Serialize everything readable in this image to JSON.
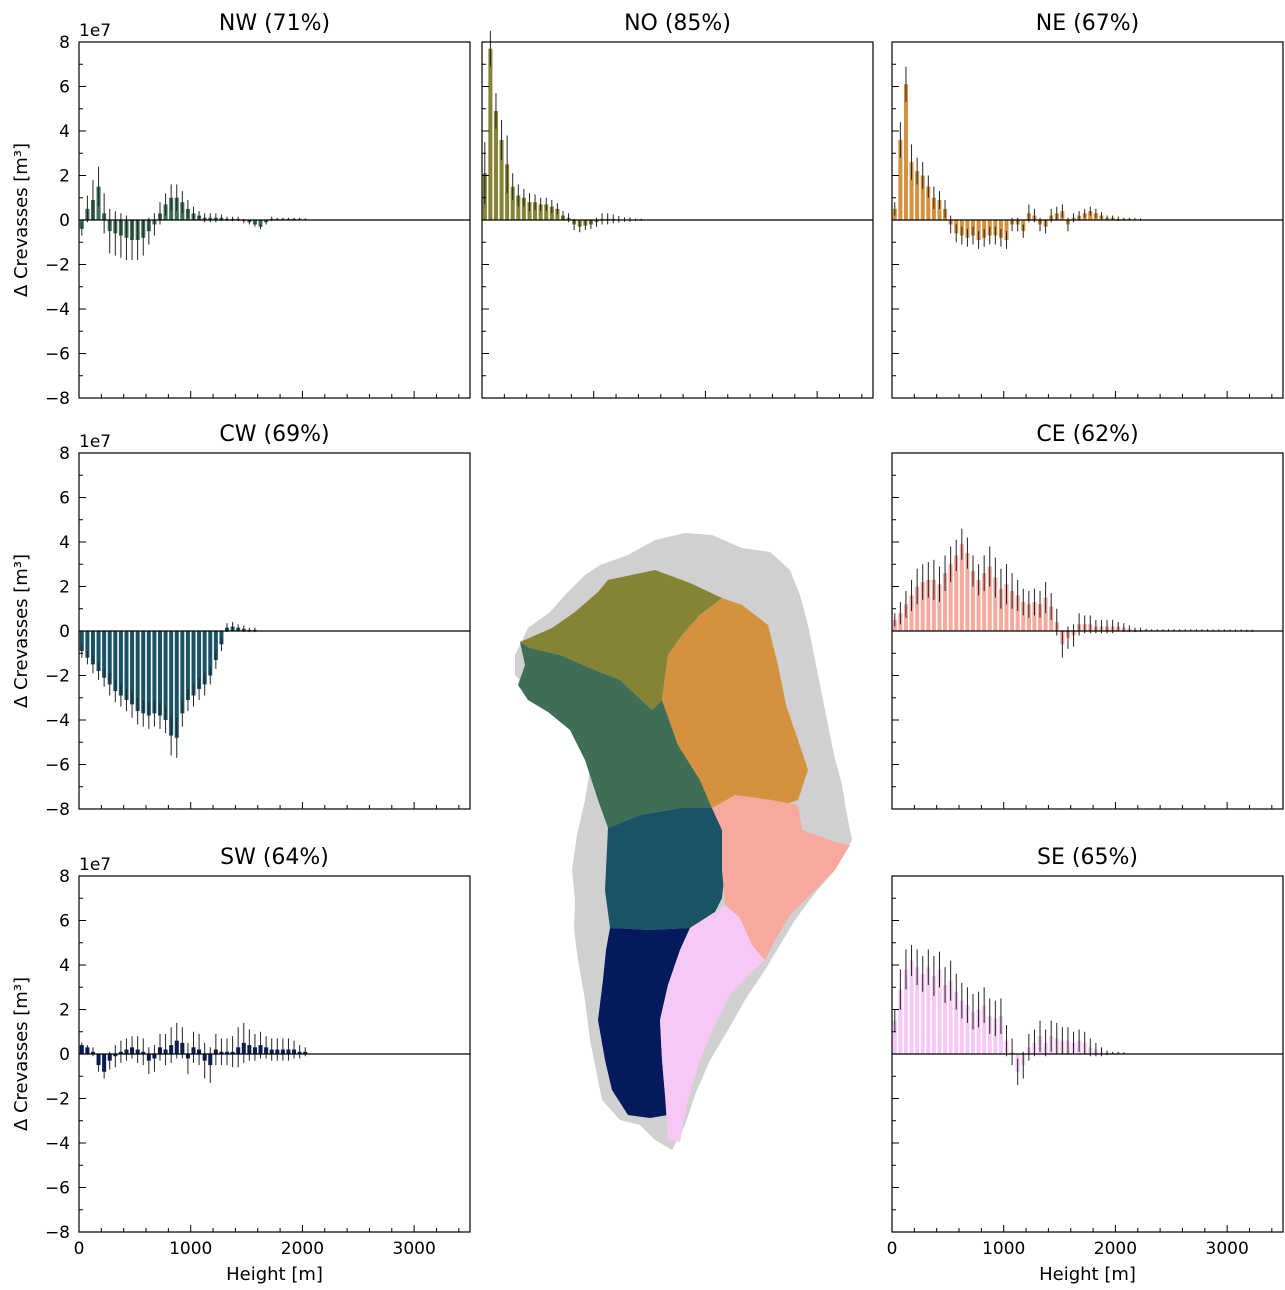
{
  "figure": {
    "shared_xlabel": "Height [m]",
    "shared_ylabel": "Δ Crevasses [m³]",
    "y_offset_text": "1e7",
    "x_tick_labels": [
      "0",
      "1000",
      "2000",
      "3000"
    ],
    "y_tick_labels": [
      "−8",
      "−6",
      "−4",
      "−2",
      "0",
      "2",
      "4",
      "6",
      "8"
    ],
    "map_region_colors": {
      "NW": "#3f6e56",
      "NO": "#858435",
      "NE": "#d4923f",
      "CW": "#1b5366",
      "CE": "#f8a89c",
      "SW": "#051a5c",
      "SE": "#f6c8f3",
      "land": "#d0d0d0"
    }
  },
  "chart_data": [
    {
      "type": "bar",
      "title": "NW (71%)",
      "color": "#3f6e56",
      "xlabel": "",
      "ylabel": "Δ Crevasses [m³]",
      "xlim": [
        0,
        3500
      ],
      "ylim": [
        -8,
        8
      ],
      "y_scale_exponent": 7,
      "x": [
        25,
        75,
        125,
        175,
        225,
        275,
        325,
        375,
        425,
        475,
        525,
        575,
        625,
        675,
        725,
        775,
        825,
        875,
        925,
        975,
        1025,
        1075,
        1125,
        1175,
        1225,
        1275,
        1325,
        1375,
        1425,
        1475,
        1525,
        1575,
        1625,
        1675,
        1725,
        1775,
        1825,
        1875,
        1925,
        1975,
        2025
      ],
      "values": [
        -0.4,
        0.5,
        0.9,
        1.5,
        0.3,
        -0.5,
        -0.6,
        -0.7,
        -0.8,
        -0.9,
        -0.9,
        -0.8,
        -0.5,
        -0.2,
        0.3,
        0.7,
        1.0,
        1.0,
        0.8,
        0.5,
        0.3,
        0.2,
        0.1,
        0.1,
        0.1,
        0.1,
        0.05,
        0.05,
        0.05,
        -0.05,
        -0.1,
        -0.2,
        -0.3,
        -0.1,
        0.05,
        0.05,
        0.05,
        0.05,
        0.05,
        0.05,
        0.03
      ],
      "errors": [
        0.3,
        0.6,
        0.9,
        0.9,
        0.9,
        1.0,
        1.0,
        1.0,
        1.0,
        0.9,
        0.9,
        0.8,
        0.6,
        0.5,
        0.5,
        0.5,
        0.6,
        0.6,
        0.5,
        0.4,
        0.3,
        0.2,
        0.2,
        0.2,
        0.2,
        0.15,
        0.1,
        0.1,
        0.1,
        0.1,
        0.1,
        0.1,
        0.1,
        0.1,
        0.1,
        0.05,
        0.05,
        0.05,
        0.05,
        0.05,
        0.05
      ]
    },
    {
      "type": "bar",
      "title": "NO (85%)",
      "color": "#858435",
      "xlabel": "",
      "ylabel": "",
      "xlim": [
        0,
        3500
      ],
      "ylim": [
        -8,
        8
      ],
      "y_scale_exponent": 7,
      "x": [
        25,
        75,
        125,
        175,
        225,
        275,
        325,
        375,
        425,
        475,
        525,
        575,
        625,
        675,
        725,
        775,
        825,
        875,
        925,
        975,
        1025,
        1075,
        1125,
        1175,
        1225,
        1275,
        1325,
        1375,
        1425
      ],
      "values": [
        2.1,
        7.7,
        4.9,
        3.6,
        2.5,
        1.5,
        1.1,
        1.0,
        0.8,
        0.8,
        0.7,
        0.7,
        0.6,
        0.5,
        0.2,
        0.1,
        -0.2,
        -0.3,
        -0.25,
        -0.2,
        -0.1,
        0.05,
        0.05,
        0.05,
        0.03,
        0.02,
        0.02,
        0.01,
        0.01
      ],
      "errors": [
        1.4,
        0.8,
        0.8,
        0.9,
        1.3,
        0.6,
        0.5,
        0.4,
        0.4,
        0.35,
        0.3,
        0.3,
        0.3,
        0.25,
        0.2,
        0.2,
        0.25,
        0.25,
        0.2,
        0.2,
        0.2,
        0.25,
        0.25,
        0.2,
        0.15,
        0.1,
        0.1,
        0.05,
        0.05
      ]
    },
    {
      "type": "bar",
      "title": "NE (67%)",
      "color": "#d4923f",
      "xlabel": "",
      "ylabel": "",
      "xlim": [
        0,
        3500
      ],
      "ylim": [
        -8,
        8
      ],
      "y_scale_exponent": 7,
      "x": [
        25,
        75,
        125,
        175,
        225,
        275,
        325,
        375,
        425,
        475,
        525,
        575,
        625,
        675,
        725,
        775,
        825,
        875,
        925,
        975,
        1025,
        1075,
        1125,
        1175,
        1225,
        1275,
        1325,
        1375,
        1425,
        1475,
        1525,
        1575,
        1625,
        1675,
        1725,
        1775,
        1825,
        1875,
        1925,
        1975,
        2025,
        2075,
        2125,
        2175,
        2225
      ],
      "values": [
        0.5,
        3.6,
        6.1,
        2.6,
        2.2,
        2.0,
        1.5,
        1.0,
        0.9,
        0.5,
        -0.2,
        -0.6,
        -0.7,
        -0.8,
        -0.7,
        -0.9,
        -0.8,
        -0.7,
        -0.7,
        -0.8,
        -0.9,
        -0.2,
        -0.2,
        -0.5,
        0.3,
        0.2,
        -0.2,
        -0.3,
        0.2,
        0.3,
        0.4,
        -0.2,
        0.1,
        0.2,
        0.3,
        0.4,
        0.3,
        0.2,
        0.1,
        0.1,
        0.05,
        0.05,
        0.05,
        0.03,
        0.02
      ],
      "errors": [
        0.3,
        0.8,
        0.8,
        0.8,
        0.6,
        0.6,
        0.5,
        0.5,
        0.4,
        0.4,
        0.4,
        0.4,
        0.4,
        0.4,
        0.4,
        0.4,
        0.4,
        0.4,
        0.4,
        0.4,
        0.4,
        0.3,
        0.3,
        0.3,
        0.4,
        0.3,
        0.3,
        0.3,
        0.3,
        0.3,
        0.3,
        0.3,
        0.2,
        0.2,
        0.2,
        0.2,
        0.2,
        0.15,
        0.1,
        0.1,
        0.1,
        0.05,
        0.05,
        0.05,
        0.05
      ]
    },
    {
      "type": "bar",
      "title": "CW (69%)",
      "color": "#1b5366",
      "xlabel": "",
      "ylabel": "Δ Crevasses [m³]",
      "xlim": [
        0,
        3500
      ],
      "ylim": [
        -8,
        8
      ],
      "y_scale_exponent": 7,
      "x": [
        25,
        75,
        125,
        175,
        225,
        275,
        325,
        375,
        425,
        475,
        525,
        575,
        625,
        675,
        725,
        775,
        825,
        875,
        925,
        975,
        1025,
        1075,
        1125,
        1175,
        1225,
        1275,
        1325,
        1375,
        1425,
        1475,
        1525,
        1575
      ],
      "values": [
        -0.9,
        -1.2,
        -1.5,
        -1.8,
        -2.1,
        -2.4,
        -2.7,
        -2.9,
        -3.1,
        -3.3,
        -3.6,
        -3.7,
        -3.8,
        -3.7,
        -3.8,
        -4.0,
        -4.7,
        -4.8,
        -3.7,
        -3.1,
        -2.9,
        -2.6,
        -2.4,
        -2.0,
        -1.3,
        -0.6,
        0.15,
        0.2,
        0.15,
        0.1,
        0.05,
        0.05
      ],
      "errors": [
        0.3,
        0.3,
        0.4,
        0.4,
        0.4,
        0.5,
        0.5,
        0.5,
        0.5,
        0.6,
        0.6,
        0.6,
        0.6,
        0.6,
        0.6,
        0.6,
        0.9,
        0.9,
        0.6,
        0.5,
        0.5,
        0.5,
        0.5,
        0.4,
        0.4,
        0.3,
        0.2,
        0.2,
        0.15,
        0.15,
        0.1,
        0.1
      ]
    },
    {
      "type": "bar",
      "title": "CE (62%)",
      "color": "#f8a89c",
      "xlabel": "",
      "ylabel": "",
      "xlim": [
        0,
        3500
      ],
      "ylim": [
        -8,
        8
      ],
      "y_scale_exponent": 7,
      "x": [
        25,
        75,
        125,
        175,
        225,
        275,
        325,
        375,
        425,
        475,
        525,
        575,
        625,
        675,
        725,
        775,
        825,
        875,
        925,
        975,
        1025,
        1075,
        1125,
        1175,
        1225,
        1275,
        1325,
        1375,
        1425,
        1475,
        1525,
        1575,
        1625,
        1675,
        1725,
        1775,
        1825,
        1875,
        1925,
        1975,
        2025,
        2075,
        2125,
        2175,
        2225,
        2275,
        2325,
        2375,
        2425,
        2475,
        2525,
        2575,
        2625,
        2675,
        2725,
        2775,
        2825,
        2875,
        2925,
        2975,
        3025,
        3075,
        3125,
        3175,
        3225
      ],
      "values": [
        0.5,
        0.8,
        1.2,
        1.6,
        2.0,
        2.2,
        2.3,
        2.3,
        2.1,
        2.6,
        3.0,
        3.4,
        3.9,
        3.5,
        2.7,
        2.3,
        2.6,
        2.9,
        2.4,
        1.9,
        2.1,
        1.8,
        1.6,
        1.3,
        1.2,
        1.3,
        1.2,
        1.5,
        1.1,
        0.4,
        -0.6,
        -0.3,
        -0.2,
        0.3,
        0.3,
        0.3,
        0.2,
        0.2,
        0.2,
        0.2,
        0.2,
        0.15,
        0.1,
        0.05,
        0.05,
        0.05,
        0.03,
        0.03,
        0.03,
        0.03,
        0.03,
        0.03,
        0.03,
        0.03,
        0.03,
        0.03,
        0.03,
        0.02,
        0.02,
        0.02,
        0.02,
        0.02,
        0.02,
        0.01,
        0.01
      ],
      "errors": [
        0.3,
        0.5,
        0.6,
        0.7,
        0.8,
        0.8,
        0.8,
        0.9,
        0.8,
        0.8,
        0.8,
        0.7,
        0.7,
        0.7,
        0.7,
        0.7,
        0.8,
        0.9,
        0.9,
        0.9,
        0.9,
        0.8,
        0.7,
        0.6,
        0.6,
        0.6,
        0.6,
        0.7,
        0.6,
        0.6,
        0.6,
        0.5,
        0.5,
        0.5,
        0.4,
        0.4,
        0.3,
        0.3,
        0.3,
        0.3,
        0.2,
        0.2,
        0.15,
        0.1,
        0.1,
        0.05,
        0.05,
        0.05,
        0.05,
        0.05,
        0.05,
        0.05,
        0.05,
        0.05,
        0.05,
        0.05,
        0.05,
        0.05,
        0.05,
        0.05,
        0.05,
        0.05,
        0.05,
        0.05,
        0.05
      ]
    },
    {
      "type": "bar",
      "title": "SW (64%)",
      "color": "#051a5c",
      "xlabel": "Height [m]",
      "ylabel": "Δ Crevasses [m³]",
      "xlim": [
        0,
        3500
      ],
      "ylim": [
        -8,
        8
      ],
      "y_scale_exponent": 7,
      "x": [
        25,
        75,
        125,
        175,
        225,
        275,
        325,
        375,
        425,
        475,
        525,
        575,
        625,
        675,
        725,
        775,
        825,
        875,
        925,
        975,
        1025,
        1075,
        1125,
        1175,
        1225,
        1275,
        1325,
        1375,
        1425,
        1475,
        1525,
        1575,
        1625,
        1675,
        1725,
        1775,
        1825,
        1875,
        1925,
        1975,
        2025
      ],
      "values": [
        0.4,
        0.3,
        0.1,
        -0.5,
        -0.8,
        -0.3,
        -0.1,
        0.1,
        0.2,
        0.3,
        0.2,
        0.1,
        -0.3,
        -0.2,
        0.3,
        0.2,
        0.4,
        0.6,
        0.5,
        -0.2,
        0.3,
        0.2,
        -0.3,
        -0.5,
        0.2,
        0.1,
        0.1,
        0.1,
        0.3,
        0.5,
        0.4,
        0.3,
        0.4,
        0.3,
        0.2,
        0.2,
        0.2,
        0.2,
        0.2,
        0.1,
        0.1
      ],
      "errors": [
        0.1,
        0.1,
        0.2,
        0.3,
        0.3,
        0.4,
        0.5,
        0.5,
        0.5,
        0.5,
        0.6,
        0.6,
        0.6,
        0.6,
        0.6,
        0.7,
        0.8,
        0.8,
        0.7,
        0.7,
        0.7,
        0.7,
        0.8,
        0.8,
        0.7,
        0.6,
        0.6,
        0.7,
        0.9,
        0.9,
        0.7,
        0.6,
        0.6,
        0.5,
        0.5,
        0.5,
        0.5,
        0.5,
        0.4,
        0.3,
        0.2
      ]
    },
    {
      "type": "bar",
      "title": "SE (65%)",
      "color": "#f6c8f3",
      "xlabel": "Height [m]",
      "ylabel": "",
      "xlim": [
        0,
        3500
      ],
      "ylim": [
        -8,
        8
      ],
      "y_scale_exponent": 7,
      "x": [
        25,
        75,
        125,
        175,
        225,
        275,
        325,
        375,
        425,
        475,
        525,
        575,
        625,
        675,
        725,
        775,
        825,
        875,
        925,
        975,
        1025,
        1075,
        1125,
        1175,
        1225,
        1275,
        1325,
        1375,
        1425,
        1475,
        1525,
        1575,
        1625,
        1675,
        1725,
        1775,
        1825,
        1875,
        1925,
        1975,
        2025,
        2075
      ],
      "values": [
        1.5,
        2.9,
        3.8,
        4.2,
        3.9,
        3.6,
        3.9,
        3.5,
        3.8,
        3.1,
        3.3,
        2.8,
        2.4,
        2.2,
        1.9,
        2.0,
        2.2,
        1.7,
        1.6,
        1.7,
        0.6,
        0.1,
        -0.8,
        -0.5,
        0.3,
        0.5,
        0.8,
        0.5,
        0.8,
        0.7,
        0.6,
        0.6,
        0.5,
        0.6,
        0.5,
        0.3,
        0.2,
        0.1,
        0.05,
        0.05,
        0.05,
        0.03
      ],
      "errors": [
        0.5,
        0.9,
        0.9,
        0.7,
        0.8,
        0.8,
        0.8,
        0.9,
        0.8,
        0.8,
        0.9,
        0.8,
        0.8,
        0.8,
        0.8,
        0.8,
        0.8,
        0.8,
        0.8,
        0.8,
        0.7,
        0.6,
        0.6,
        0.6,
        0.6,
        0.6,
        0.7,
        0.6,
        0.7,
        0.7,
        0.6,
        0.6,
        0.5,
        0.5,
        0.5,
        0.4,
        0.3,
        0.2,
        0.1,
        0.05,
        0.05,
        0.05
      ]
    }
  ]
}
